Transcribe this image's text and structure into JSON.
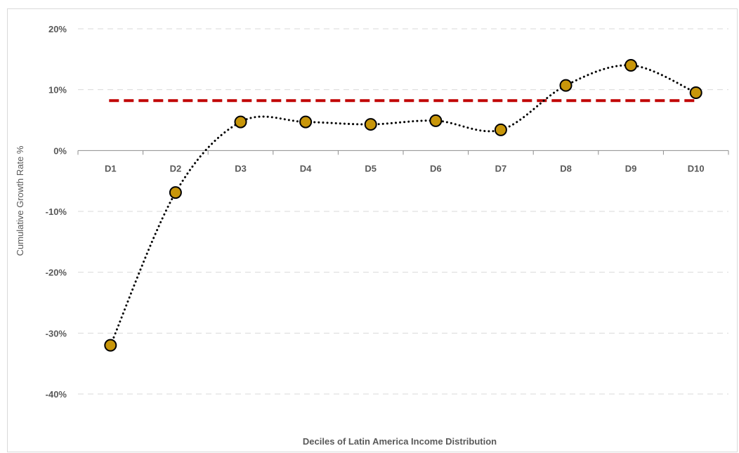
{
  "chart_data": {
    "type": "line",
    "xlabel": "Deciles of Latin America Income Distribution",
    "ylabel": "Cumulative Growth Rate %",
    "categories": [
      "D1",
      "D2",
      "D3",
      "D4",
      "D5",
      "D6",
      "D7",
      "D8",
      "D9",
      "D10"
    ],
    "ylim": [
      -40,
      20
    ],
    "yticks": [
      20,
      10,
      0,
      -10,
      -20,
      -30,
      -40
    ],
    "ytick_labels": [
      "20%",
      "10%",
      "0%",
      "-10%",
      "-20%",
      "-30%",
      "-40%"
    ],
    "grid": true,
    "series": [
      {
        "type": "line-markers",
        "style": "dotted-smooth",
        "color": "#000000",
        "marker_color": "#C8960A",
        "values": [
          -32.0,
          -6.9,
          4.7,
          4.7,
          4.3,
          4.9,
          3.4,
          10.7,
          14.0,
          9.5
        ]
      },
      {
        "type": "reference-line",
        "style": "dashed",
        "color": "#C00000",
        "value": 8.2
      }
    ]
  }
}
